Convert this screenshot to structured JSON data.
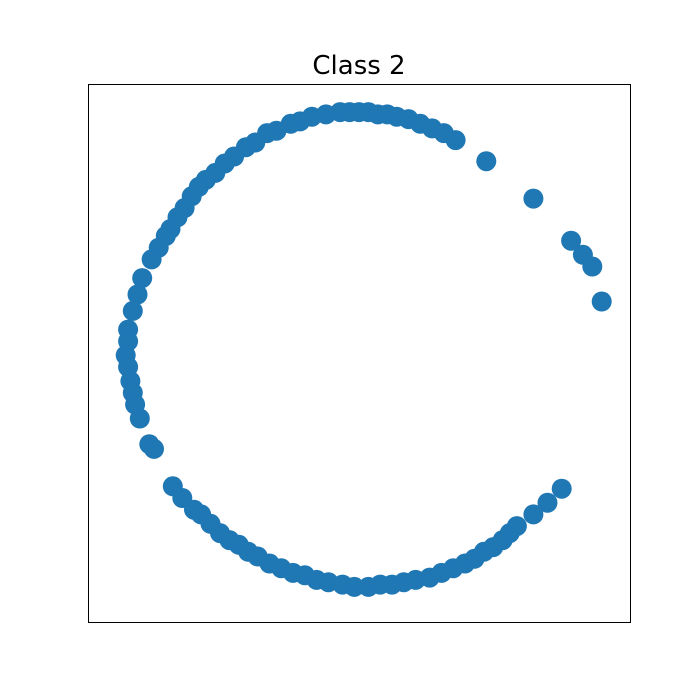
{
  "chart_data": {
    "type": "scatter",
    "title": "Class 2",
    "xlabel": "",
    "ylabel": "",
    "xlim": [
      -1.15,
      1.15
    ],
    "ylim": [
      -1.15,
      1.15
    ],
    "show_ticks": false,
    "grid": false,
    "marker_color": "#1f77b4",
    "series": [
      {
        "points": [
          [
            -0.08,
            1.03
          ],
          [
            -0.04,
            1.03
          ],
          [
            0.0,
            1.03
          ],
          [
            0.04,
            1.03
          ],
          [
            0.08,
            1.02
          ],
          [
            0.12,
            1.02
          ],
          [
            0.16,
            1.01
          ],
          [
            0.21,
            1.0
          ],
          [
            0.26,
            0.98
          ],
          [
            0.31,
            0.96
          ],
          [
            0.36,
            0.94
          ],
          [
            0.41,
            0.91
          ],
          [
            0.54,
            0.82
          ],
          [
            0.74,
            0.66
          ],
          [
            0.9,
            0.48
          ],
          [
            0.95,
            0.42
          ],
          [
            0.99,
            0.37
          ],
          [
            1.03,
            0.22
          ],
          [
            -0.14,
            1.02
          ],
          [
            -0.2,
            1.01
          ],
          [
            -0.25,
            0.99
          ],
          [
            -0.29,
            0.98
          ],
          [
            -0.35,
            0.95
          ],
          [
            -0.39,
            0.94
          ],
          [
            -0.44,
            0.9
          ],
          [
            -0.48,
            0.88
          ],
          [
            -0.53,
            0.84
          ],
          [
            -0.57,
            0.81
          ],
          [
            -0.61,
            0.77
          ],
          [
            -0.65,
            0.74
          ],
          [
            -0.68,
            0.71
          ],
          [
            -0.71,
            0.67
          ],
          [
            -0.74,
            0.62
          ],
          [
            -0.77,
            0.58
          ],
          [
            -0.8,
            0.53
          ],
          [
            -0.82,
            0.5
          ],
          [
            -0.85,
            0.45
          ],
          [
            -0.88,
            0.4
          ],
          [
            -0.92,
            0.32
          ],
          [
            -0.94,
            0.25
          ],
          [
            -0.96,
            0.18
          ],
          [
            -0.98,
            0.1
          ],
          [
            -0.98,
            0.05
          ],
          [
            -0.99,
            -0.01
          ],
          [
            -0.98,
            -0.06
          ],
          [
            -0.97,
            -0.12
          ],
          [
            -0.96,
            -0.17
          ],
          [
            -0.95,
            -0.22
          ],
          [
            -0.93,
            -0.28
          ],
          [
            -0.89,
            -0.39
          ],
          [
            -0.87,
            -0.41
          ],
          [
            -0.79,
            -0.57
          ],
          [
            -0.75,
            -0.62
          ],
          [
            -0.7,
            -0.67
          ],
          [
            -0.67,
            -0.69
          ],
          [
            -0.63,
            -0.73
          ],
          [
            -0.59,
            -0.77
          ],
          [
            -0.55,
            -0.8
          ],
          [
            -0.51,
            -0.82
          ],
          [
            -0.47,
            -0.85
          ],
          [
            -0.43,
            -0.87
          ],
          [
            -0.38,
            -0.9
          ],
          [
            -0.33,
            -0.92
          ],
          [
            -0.28,
            -0.94
          ],
          [
            -0.23,
            -0.95
          ],
          [
            -0.18,
            -0.97
          ],
          [
            -0.13,
            -0.98
          ],
          [
            -0.07,
            -0.99
          ],
          [
            -0.02,
            -1.0
          ],
          [
            0.04,
            -1.0
          ],
          [
            0.09,
            -0.99
          ],
          [
            0.14,
            -0.99
          ],
          [
            0.19,
            -0.98
          ],
          [
            0.24,
            -0.97
          ],
          [
            0.3,
            -0.96
          ],
          [
            0.35,
            -0.94
          ],
          [
            0.4,
            -0.92
          ],
          [
            0.45,
            -0.9
          ],
          [
            0.49,
            -0.88
          ],
          [
            0.53,
            -0.85
          ],
          [
            0.57,
            -0.83
          ],
          [
            0.61,
            -0.8
          ],
          [
            0.64,
            -0.77
          ],
          [
            0.67,
            -0.74
          ],
          [
            0.74,
            -0.69
          ],
          [
            0.8,
            -0.64
          ],
          [
            0.86,
            -0.58
          ]
        ]
      }
    ]
  }
}
